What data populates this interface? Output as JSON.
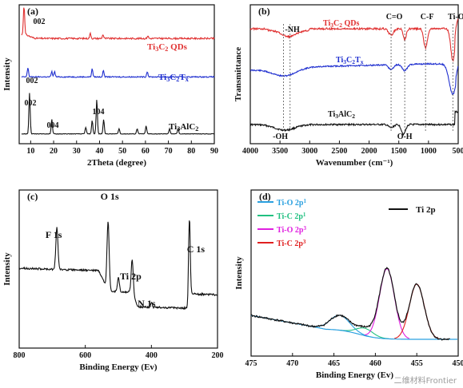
{
  "watermark": "二维材料Frontier",
  "chart_data": [
    {
      "type": "line",
      "panel": "(a)",
      "xlabel": "2Theta (degree)",
      "ylabel": "Intensity",
      "xlim": [
        5,
        90
      ],
      "xticks": [
        10,
        20,
        30,
        40,
        50,
        60,
        70,
        80,
        90
      ],
      "series": [
        {
          "name": "Ti3C2 QDs",
          "color": "#e03030",
          "baseline": 0.77,
          "noise": 0.012,
          "peaks": [
            [
              7.1,
              0.22
            ],
            [
              36.0,
              0.04
            ],
            [
              41.5,
              0.03
            ],
            [
              61.0,
              0.02
            ]
          ],
          "label": [
            {
              "t": "Ti"
            },
            {
              "t": "3",
              "sub": true
            },
            {
              "t": "C"
            },
            {
              "t": "2",
              "sub": true
            },
            {
              "t": " QDs"
            }
          ]
        },
        {
          "name": "Ti3C2Tx",
          "color": "#2030d0",
          "baseline": 0.48,
          "noise": 0.008,
          "peaks": [
            [
              8.8,
              0.07
            ],
            [
              19.2,
              0.04
            ],
            [
              20.4,
              0.04
            ],
            [
              36.8,
              0.06
            ],
            [
              41.7,
              0.05
            ],
            [
              60.8,
              0.04
            ]
          ],
          "label": [
            {
              "t": "Ti"
            },
            {
              "t": "3",
              "sub": true
            },
            {
              "t": "C"
            },
            {
              "t": "2",
              "sub": true
            },
            {
              "t": "T"
            },
            {
              "t": "x",
              "sub": true
            }
          ]
        },
        {
          "name": "Ti3AlC2",
          "color": "#111111",
          "baseline": 0.05,
          "noise": 0.004,
          "peaks": [
            [
              9.5,
              0.31
            ],
            [
              19.2,
              0.11
            ],
            [
              34.0,
              0.05
            ],
            [
              36.8,
              0.1
            ],
            [
              38.8,
              0.26
            ],
            [
              41.8,
              0.11
            ],
            [
              48.5,
              0.04
            ],
            [
              56.4,
              0.04
            ],
            [
              60.3,
              0.06
            ],
            [
              70.5,
              0.04
            ],
            [
              74.2,
              0.04
            ]
          ],
          "label": [
            {
              "t": "Ti"
            },
            {
              "t": "3",
              "sub": true
            },
            {
              "t": "AlC"
            },
            {
              "t": "2",
              "sub": true
            }
          ]
        }
      ],
      "annotations": [
        "002",
        "002",
        "002",
        "004",
        "104"
      ]
    },
    {
      "type": "line",
      "panel": "(b)",
      "xlabel": "Wavenumber (cm⁻¹)",
      "ylabel": "Transmittance",
      "xlim": [
        4000,
        500
      ],
      "xticks": [
        4000,
        3500,
        3000,
        2500,
        2000,
        1500,
        1000,
        500
      ],
      "bands": [
        "-NH",
        "C=O",
        "C-F",
        "Ti-O",
        "-OH",
        "O-H"
      ],
      "band_positions": [
        3440,
        3330,
        1630,
        1400,
        1050,
        590
      ],
      "series": [
        {
          "name": "Ti3C2 QDs",
          "color": "#e03030",
          "label": [
            {
              "t": "Ti"
            },
            {
              "t": "3",
              "sub": true
            },
            {
              "t": "C"
            },
            {
              "t": "2",
              "sub": true
            },
            {
              "t": " QDs"
            }
          ]
        },
        {
          "name": "Ti3C2Tx",
          "color": "#2030d0",
          "label": [
            {
              "t": "Ti"
            },
            {
              "t": "3",
              "sub": true
            },
            {
              "t": "C"
            },
            {
              "t": "2",
              "sub": true
            },
            {
              "t": "T"
            },
            {
              "t": "x",
              "sub": true
            }
          ]
        },
        {
          "name": "Ti3AlC2",
          "color": "#111111",
          "label": [
            {
              "t": "Ti"
            },
            {
              "t": "3",
              "sub": true
            },
            {
              "t": "AlC"
            },
            {
              "t": "2",
              "sub": true
            }
          ]
        }
      ]
    },
    {
      "type": "line",
      "panel": "(c)",
      "xlabel": "Binding Energy (Ev)",
      "ylabel": "Intensity",
      "xlim": [
        800,
        200
      ],
      "xticks": [
        800,
        600,
        400,
        200
      ],
      "series": [
        {
          "name": "survey",
          "color": "#111111"
        }
      ],
      "peaks": [
        {
          "label": "F 1s",
          "x": 686
        },
        {
          "label": "O 1s",
          "x": 531
        },
        {
          "label": "Ti 2p",
          "x": 458
        },
        {
          "label": "N 1s",
          "x": 400
        },
        {
          "label": "C 1s",
          "x": 285
        }
      ]
    },
    {
      "type": "line",
      "panel": "(d)",
      "xlabel": "Binding Energy (Ev)",
      "ylabel": "Intensity",
      "xlim": [
        475,
        450
      ],
      "xticks": [
        475,
        470,
        465,
        460,
        455,
        450
      ],
      "legend_position": "top",
      "fit_legend": [
        {
          "name": "Ti-O 2p1",
          "color": "#2aa0e0",
          "label": [
            {
              "t": "Ti-O  2p"
            },
            {
              "t": "1",
              "sup": true
            }
          ]
        },
        {
          "name": "Ti-C 2p1",
          "color": "#20c080",
          "label": [
            {
              "t": "Ti-C  2p"
            },
            {
              "t": "1",
              "sup": true
            }
          ]
        },
        {
          "name": "Ti-O 2p3",
          "color": "#e020e0",
          "label": [
            {
              "t": "Ti-O  2p"
            },
            {
              "t": "3",
              "sup": true
            }
          ]
        },
        {
          "name": "Ti-C 2p3",
          "color": "#e02020",
          "label": [
            {
              "t": "Ti-C  2p"
            },
            {
              "t": "3",
              "sup": true
            }
          ]
        }
      ],
      "data_legend": {
        "name": "Ti 2p",
        "color": "#111111"
      },
      "components": [
        {
          "name": "Ti-O 2p1",
          "center": 464.3,
          "height": 0.1,
          "width": 1.2
        },
        {
          "name": "Ti-C 2p1",
          "center": 461.3,
          "height": 0.05,
          "width": 1.0
        },
        {
          "name": "Ti-O 2p3",
          "center": 458.6,
          "height": 0.47,
          "width": 0.9
        },
        {
          "name": "Ti-C 2p3",
          "center": 455.0,
          "height": 0.37,
          "width": 0.9
        }
      ]
    }
  ]
}
